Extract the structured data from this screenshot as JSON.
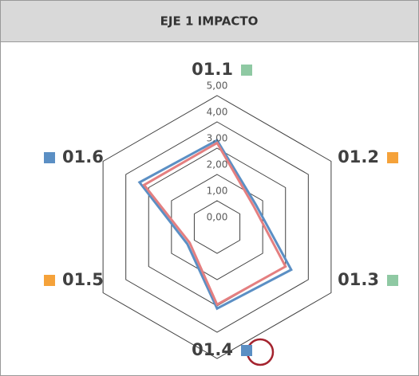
{
  "chart_data": {
    "type": "radar",
    "title": "EJE 1 IMPACTO",
    "categories": [
      "01.1",
      "01.2",
      "01.3",
      "01.4",
      "01.5",
      "01.6"
    ],
    "category_marker_colors": [
      "#8fc9a3",
      "#f5a23a",
      "#8fc9a3",
      "#5b8fc4",
      "#f5a23a",
      "#5b8fc4"
    ],
    "series": [
      {
        "color": "#5b8fc4",
        "values": [
          3.3,
          1.7,
          3.25,
          3.1,
          1.3,
          3.4
        ]
      },
      {
        "color": "#e47f80",
        "values": [
          3.2,
          1.6,
          3.0,
          2.95,
          1.2,
          3.2
        ]
      }
    ],
    "ylim": [
      0,
      5
    ],
    "yticks": [
      {
        "value": 0,
        "label": "0,00"
      },
      {
        "value": 1,
        "label": "1,00"
      },
      {
        "value": 2,
        "label": "2,00"
      },
      {
        "value": 3,
        "label": "3,00"
      },
      {
        "value": 4,
        "label": "4,00"
      },
      {
        "value": 5,
        "label": "5,00"
      }
    ],
    "grid": true
  }
}
